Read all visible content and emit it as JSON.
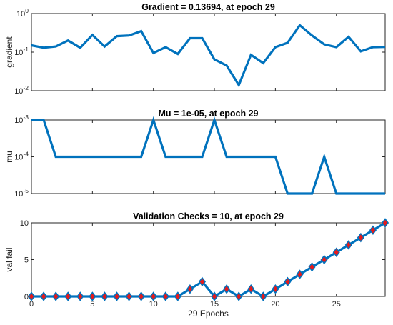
{
  "chart_data": [
    {
      "type": "line",
      "title": "Gradient = 0.13694, at epoch 29",
      "ylabel": "gradient",
      "xlabel": "",
      "yscale": "log",
      "ylim": [
        0.01,
        1
      ],
      "xlim": [
        0,
        29
      ],
      "yticks": [
        0.01,
        0.1,
        1
      ],
      "ytick_labels": [
        {
          "base": "10",
          "exp": "-2"
        },
        {
          "base": "10",
          "exp": "-1"
        },
        {
          "base": "10",
          "exp": "0"
        }
      ],
      "line_color": "#0072BD",
      "x": [
        0,
        1,
        2,
        3,
        4,
        5,
        6,
        7,
        8,
        9,
        10,
        11,
        12,
        13,
        14,
        15,
        16,
        17,
        18,
        19,
        20,
        21,
        22,
        23,
        24,
        25,
        26,
        27,
        28,
        29
      ],
      "values": [
        0.15,
        0.13,
        0.14,
        0.2,
        0.13,
        0.28,
        0.14,
        0.26,
        0.27,
        0.35,
        0.095,
        0.135,
        0.09,
        0.23,
        0.23,
        0.065,
        0.045,
        0.014,
        0.085,
        0.052,
        0.135,
        0.175,
        0.5,
        0.27,
        0.16,
        0.135,
        0.25,
        0.105,
        0.135,
        0.137
      ]
    },
    {
      "type": "line",
      "title": "Mu = 1e-05, at epoch 29",
      "ylabel": "mu",
      "xlabel": "",
      "yscale": "log",
      "ylim": [
        1e-05,
        0.001
      ],
      "xlim": [
        0,
        29
      ],
      "yticks": [
        1e-05,
        0.0001,
        0.001
      ],
      "ytick_labels": [
        {
          "base": "10",
          "exp": "-5"
        },
        {
          "base": "10",
          "exp": "-4"
        },
        {
          "base": "10",
          "exp": "-3"
        }
      ],
      "line_color": "#0072BD",
      "x": [
        0,
        1,
        2,
        3,
        4,
        5,
        6,
        7,
        8,
        9,
        10,
        11,
        12,
        13,
        14,
        15,
        16,
        17,
        18,
        19,
        20,
        21,
        22,
        23,
        24,
        25,
        26,
        27,
        28,
        29
      ],
      "values": [
        0.001,
        0.001,
        0.0001,
        0.0001,
        0.0001,
        0.0001,
        0.0001,
        0.0001,
        0.0001,
        0.0001,
        0.001,
        0.0001,
        0.0001,
        0.0001,
        0.0001,
        0.001,
        0.0001,
        0.0001,
        0.0001,
        0.0001,
        0.0001,
        1e-05,
        1e-05,
        1e-05,
        0.0001,
        1e-05,
        1e-05,
        1e-05,
        1e-05,
        1e-05
      ]
    },
    {
      "type": "line",
      "title": "Validation Checks = 10, at epoch 29",
      "ylabel": "val fail",
      "xlabel": "29 Epochs",
      "yscale": "linear",
      "ylim": [
        0,
        10
      ],
      "xlim": [
        0,
        29
      ],
      "yticks": [
        0,
        5,
        10
      ],
      "ytick_labels": [
        "0",
        "5",
        "10"
      ],
      "xticks": [
        0,
        5,
        10,
        15,
        20,
        25
      ],
      "xtick_labels": [
        "0",
        "5",
        "10",
        "15",
        "20",
        "25"
      ],
      "line_color": "#0072BD",
      "marker": "diamond",
      "marker_face_color": "#E31A1C",
      "marker_edge_color": "#0072BD",
      "x": [
        0,
        1,
        2,
        3,
        4,
        5,
        6,
        7,
        8,
        9,
        10,
        11,
        12,
        13,
        14,
        15,
        16,
        17,
        18,
        19,
        20,
        21,
        22,
        23,
        24,
        25,
        26,
        27,
        28,
        29
      ],
      "values": [
        0,
        0,
        0,
        0,
        0,
        0,
        0,
        0,
        0,
        0,
        0,
        0,
        0,
        1,
        2,
        0,
        1,
        0,
        1,
        0,
        1,
        2,
        3,
        4,
        5,
        6,
        7,
        8,
        9,
        10
      ]
    }
  ]
}
